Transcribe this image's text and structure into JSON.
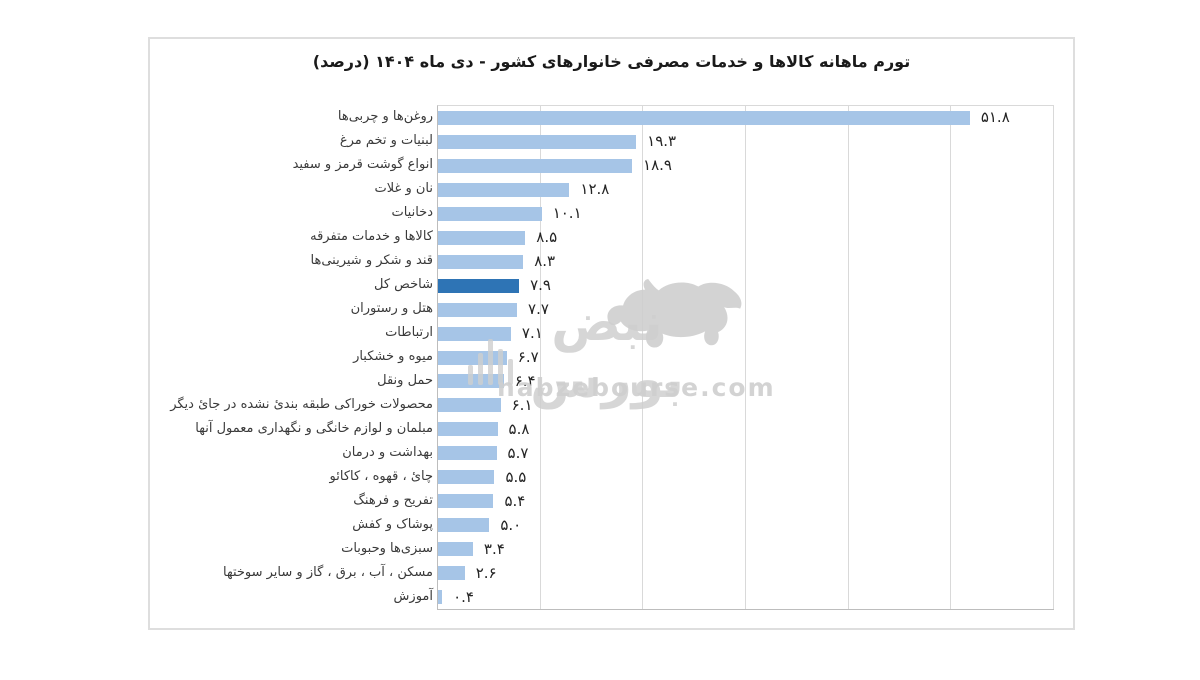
{
  "chart_data": {
    "type": "bar",
    "orientation": "horizontal",
    "title": "تورم ماهانه کالاها و خدمات مصرفی خانوارهای کشور - دی ماه ۱۴۰۴ (درصد)",
    "categories": [
      "روغن‌ها و چربی‌ها",
      "لبنیات و تخم مرغ",
      "انواع گوشت قرمز و سفید",
      "نان و غلات",
      "دخانیات",
      "کالاها و خدمات متفرقه",
      "قند و شکر و شیرینی‌ها",
      "شاخص کل",
      "هتل و رستوران",
      "ارتباطات",
      "میوه و خشکبار",
      "حمل ونقل",
      "محصولات خوراکی طبقه بندئ نشده در جائ دیگر",
      "مبلمان و لوازم خانگی و نگهداری معمول آنها",
      "بهداشت و درمان",
      "چائ ، قهوه ، کاکائو",
      "تفریح و فرهنگ",
      "پوشاک و کفش",
      "سبزی‌ها وحبوبات",
      "مسکن ، آب ، برق ، گاز و سایر سوختها",
      "آموزش"
    ],
    "values": [
      51.8,
      19.3,
      18.9,
      12.8,
      10.1,
      8.5,
      8.3,
      7.9,
      7.7,
      7.1,
      6.7,
      6.4,
      6.1,
      5.8,
      5.7,
      5.5,
      5.4,
      5.0,
      3.4,
      2.6,
      0.4
    ],
    "value_labels": [
      "۵۱.۸",
      "۱۹.۳",
      "۱۸.۹",
      "۱۲.۸",
      "۱۰.۱",
      "۸.۵",
      "۸.۳",
      "۷.۹",
      "۷.۷",
      "۷.۱",
      "۶.۷",
      "۶.۴",
      "۶.۱",
      "۵.۸",
      "۵.۷",
      "۵.۵",
      "۵.۴",
      "۵.۰",
      "۳.۴",
      "۲.۶",
      "۰.۴"
    ],
    "highlight_index": 7,
    "highlight_category": "شاخص کل",
    "xlim": [
      0,
      60
    ],
    "gridline_step": 10,
    "x_axis_tick_labels_visible": false,
    "legend": "none",
    "colors": {
      "bar": "#a6c5e7",
      "highlight_bar": "#2e74b5",
      "gridline": "#d9d9d9",
      "axis": "#bdbdbd",
      "card_border": "#dedede",
      "title_text": "#1a1a1a",
      "label_text": "#3a3a3a",
      "value_text": "#242424"
    }
  },
  "watermark": {
    "brand": "نبض بورس",
    "domain": "nabzebourse.com",
    "color": "#cfcfcf"
  }
}
